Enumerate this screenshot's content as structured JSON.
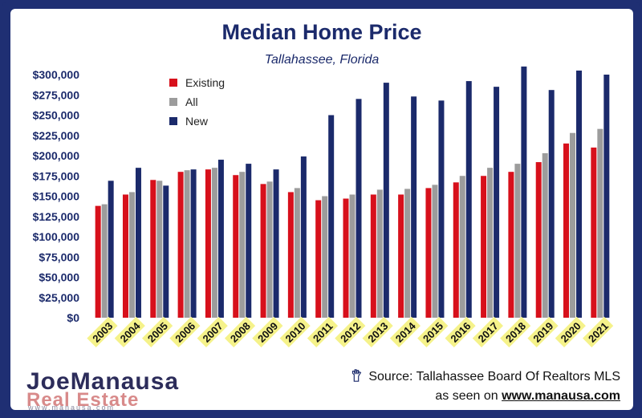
{
  "chart_data": {
    "type": "bar",
    "title": "Median Home Price",
    "subtitle": "Tallahassee, Florida",
    "categories": [
      "2003",
      "2004",
      "2005",
      "2006",
      "2007",
      "2008",
      "2009",
      "2010",
      "2011",
      "2012",
      "2013",
      "2014",
      "2015",
      "2016",
      "2017",
      "2018",
      "2019",
      "2020",
      "2021"
    ],
    "series": [
      {
        "name": "Existing",
        "color": "#d7101b",
        "values": [
          138000,
          152000,
          170000,
          180000,
          183000,
          176000,
          165000,
          155000,
          145000,
          147000,
          152000,
          152000,
          160000,
          167000,
          175000,
          180000,
          192000,
          215000,
          210000
        ]
      },
      {
        "name": "All",
        "color": "#9c9c9c",
        "values": [
          140000,
          155000,
          169000,
          182000,
          185000,
          180000,
          168000,
          160000,
          150000,
          152000,
          158000,
          159000,
          164000,
          175000,
          185000,
          190000,
          203000,
          228000,
          233000
        ]
      },
      {
        "name": "New",
        "color": "#1b2a6b",
        "values": [
          169000,
          185000,
          163000,
          183000,
          195000,
          190000,
          183000,
          199000,
          250000,
          270000,
          290000,
          273000,
          268000,
          292000,
          285000,
          310000,
          281000,
          305000,
          300000
        ]
      }
    ],
    "y_ticks": [
      "$0",
      "$25,000",
      "$50,000",
      "$75,000",
      "$100,000",
      "$125,000",
      "$150,000",
      "$175,000",
      "$200,000",
      "$225,000",
      "$250,000",
      "$275,000",
      "$300,000"
    ],
    "ylim": [
      0,
      300000
    ],
    "legend_position": "top-left",
    "grid": false
  },
  "source": {
    "line1": "Source: Tallahassee Board Of Realtors MLS",
    "line2_prefix": "as seen on ",
    "line2_link": "www.manausa.com"
  },
  "logo": {
    "line1": "JoeManausa",
    "line2": "Real Estate",
    "line3": "www.manausa.com"
  },
  "colors": {
    "frame": "#1f2f73",
    "title": "#1b2a6b",
    "year_label_bg": "#f5f28a"
  }
}
